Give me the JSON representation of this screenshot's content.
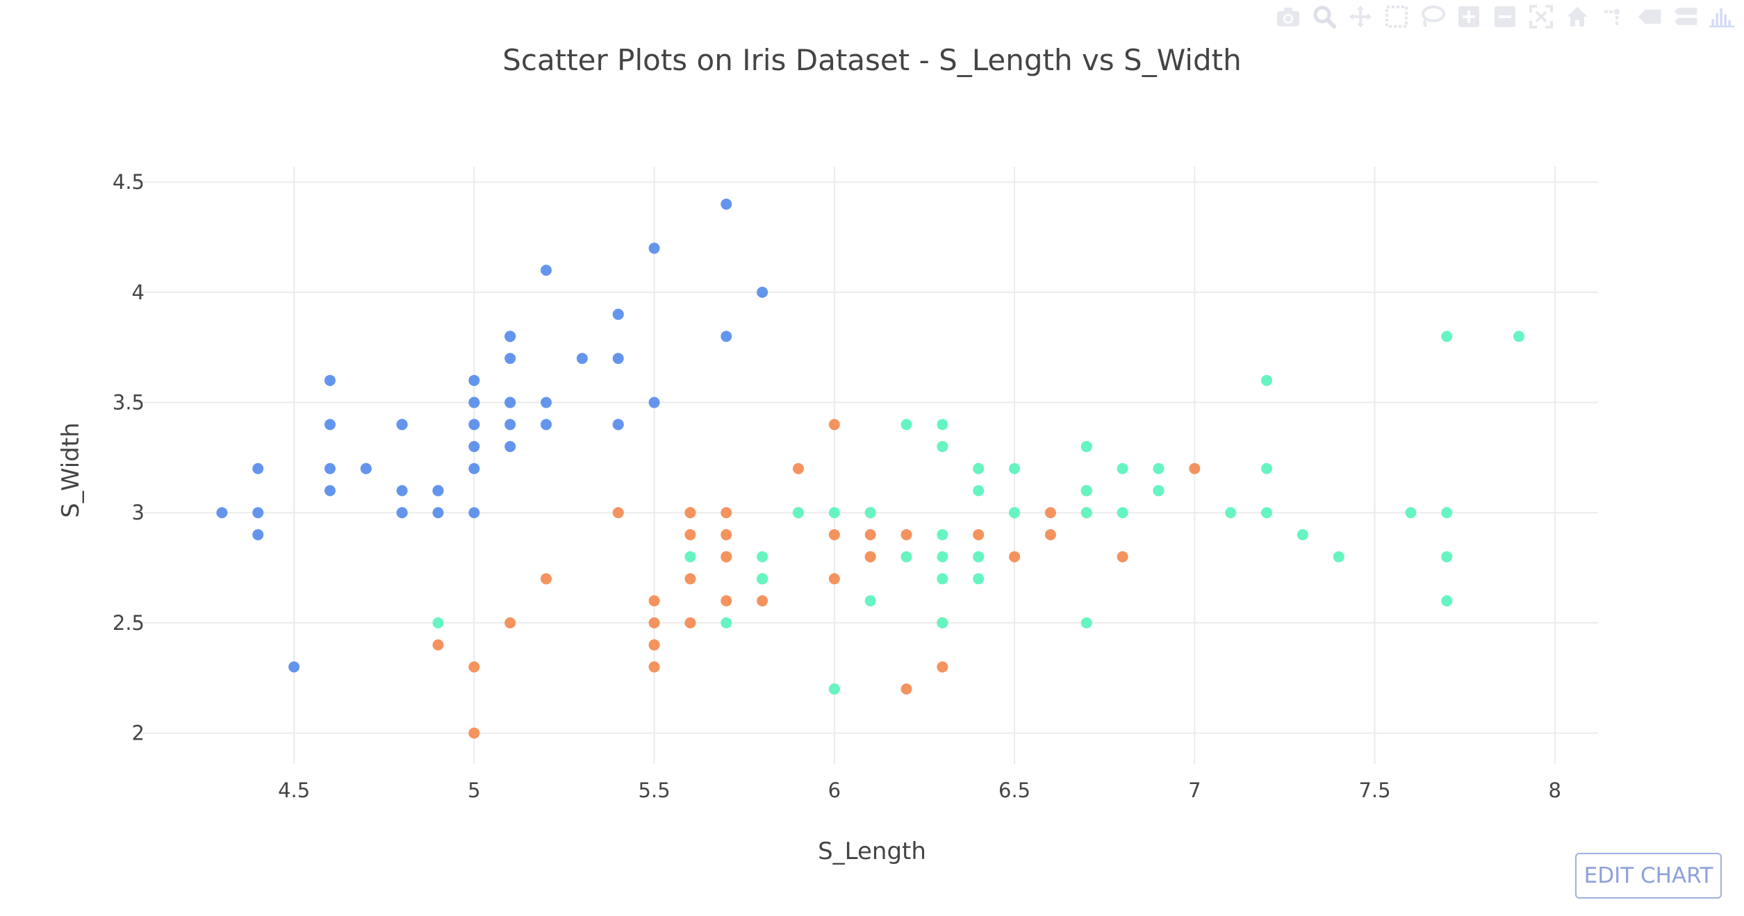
{
  "toolbar": {
    "edit_chart_label": "EDIT CHART",
    "icons": [
      "camera-icon",
      "zoom-icon",
      "pan-icon",
      "box-select-icon",
      "lasso-icon",
      "zoom-in-icon",
      "zoom-out-icon",
      "autoscale-icon",
      "home-icon",
      "spike-lines-icon",
      "hover-closest-icon",
      "hover-compare-icon",
      "plotly-logo-icon"
    ]
  },
  "chart_data": {
    "type": "scatter",
    "title": "Scatter Plots on Iris Dataset - S_Length vs S_Width",
    "xlabel": "S_Length",
    "ylabel": "S_Width",
    "xlim": [
      4.06,
      8.12
    ],
    "ylim": [
      1.86,
      4.57
    ],
    "xticks": [
      "4.5",
      "5",
      "5.5",
      "6",
      "6.5",
      "7",
      "7.5",
      "8"
    ],
    "yticks": [
      "2",
      "2.5",
      "3",
      "3.5",
      "4",
      "4.5"
    ],
    "grid": true,
    "colors": [
      "#6495ed",
      "#f4935e",
      "#66f5c0"
    ],
    "series": [
      {
        "color": "#6495ed",
        "points": [
          [
            5.1,
            3.5
          ],
          [
            4.9,
            3.0
          ],
          [
            4.7,
            3.2
          ],
          [
            4.6,
            3.1
          ],
          [
            5.0,
            3.6
          ],
          [
            5.4,
            3.9
          ],
          [
            4.6,
            3.4
          ],
          [
            5.0,
            3.4
          ],
          [
            4.4,
            2.9
          ],
          [
            4.9,
            3.1
          ],
          [
            5.4,
            3.7
          ],
          [
            4.8,
            3.4
          ],
          [
            4.8,
            3.0
          ],
          [
            4.3,
            3.0
          ],
          [
            5.8,
            4.0
          ],
          [
            5.7,
            4.4
          ],
          [
            5.4,
            3.9
          ],
          [
            5.1,
            3.5
          ],
          [
            5.7,
            3.8
          ],
          [
            5.1,
            3.8
          ],
          [
            5.4,
            3.4
          ],
          [
            5.1,
            3.7
          ],
          [
            4.6,
            3.6
          ],
          [
            5.1,
            3.3
          ],
          [
            4.8,
            3.4
          ],
          [
            5.0,
            3.0
          ],
          [
            5.0,
            3.4
          ],
          [
            5.2,
            3.5
          ],
          [
            5.2,
            3.4
          ],
          [
            4.7,
            3.2
          ],
          [
            4.8,
            3.1
          ],
          [
            5.4,
            3.4
          ],
          [
            5.2,
            4.1
          ],
          [
            5.5,
            4.2
          ],
          [
            4.9,
            3.1
          ],
          [
            5.0,
            3.2
          ],
          [
            5.5,
            3.5
          ],
          [
            4.9,
            3.1
          ],
          [
            4.4,
            3.0
          ],
          [
            5.1,
            3.4
          ],
          [
            5.0,
            3.5
          ],
          [
            4.5,
            2.3
          ],
          [
            4.4,
            3.2
          ],
          [
            5.0,
            3.5
          ],
          [
            5.1,
            3.8
          ],
          [
            4.8,
            3.0
          ],
          [
            5.1,
            3.8
          ],
          [
            4.6,
            3.2
          ],
          [
            5.3,
            3.7
          ],
          [
            5.0,
            3.3
          ]
        ]
      },
      {
        "color": "#f4935e",
        "points": [
          [
            7.0,
            3.2
          ],
          [
            6.4,
            3.2
          ],
          [
            6.9,
            3.1
          ],
          [
            5.5,
            2.3
          ],
          [
            6.5,
            2.8
          ],
          [
            5.7,
            2.8
          ],
          [
            6.3,
            3.3
          ],
          [
            4.9,
            2.4
          ],
          [
            6.6,
            2.9
          ],
          [
            5.2,
            2.7
          ],
          [
            5.0,
            2.0
          ],
          [
            5.9,
            3.0
          ],
          [
            6.0,
            2.2
          ],
          [
            6.1,
            2.9
          ],
          [
            5.6,
            2.9
          ],
          [
            6.7,
            3.1
          ],
          [
            5.6,
            3.0
          ],
          [
            5.8,
            2.7
          ],
          [
            6.2,
            2.2
          ],
          [
            5.6,
            2.5
          ],
          [
            5.9,
            3.2
          ],
          [
            6.1,
            2.8
          ],
          [
            6.3,
            2.5
          ],
          [
            6.1,
            2.8
          ],
          [
            6.4,
            2.9
          ],
          [
            6.6,
            3.0
          ],
          [
            6.8,
            2.8
          ],
          [
            6.7,
            3.0
          ],
          [
            6.0,
            2.9
          ],
          [
            5.7,
            2.6
          ],
          [
            5.5,
            2.4
          ],
          [
            5.5,
            2.4
          ],
          [
            5.8,
            2.7
          ],
          [
            6.0,
            2.7
          ],
          [
            5.4,
            3.0
          ],
          [
            6.0,
            3.4
          ],
          [
            6.7,
            3.1
          ],
          [
            6.3,
            2.3
          ],
          [
            5.6,
            3.0
          ],
          [
            5.5,
            2.5
          ],
          [
            5.5,
            2.6
          ],
          [
            6.1,
            3.0
          ],
          [
            5.8,
            2.6
          ],
          [
            5.0,
            2.3
          ],
          [
            5.6,
            2.7
          ],
          [
            5.7,
            3.0
          ],
          [
            5.7,
            2.9
          ],
          [
            6.2,
            2.9
          ],
          [
            5.1,
            2.5
          ],
          [
            5.7,
            2.8
          ]
        ]
      },
      {
        "color": "#66f5c0",
        "points": [
          [
            6.3,
            3.3
          ],
          [
            5.8,
            2.7
          ],
          [
            7.1,
            3.0
          ],
          [
            6.3,
            2.9
          ],
          [
            6.5,
            3.0
          ],
          [
            7.6,
            3.0
          ],
          [
            4.9,
            2.5
          ],
          [
            7.3,
            2.9
          ],
          [
            6.7,
            2.5
          ],
          [
            7.2,
            3.6
          ],
          [
            6.5,
            3.2
          ],
          [
            6.4,
            2.7
          ],
          [
            6.8,
            3.0
          ],
          [
            5.7,
            2.5
          ],
          [
            5.8,
            2.8
          ],
          [
            6.4,
            3.2
          ],
          [
            6.5,
            3.0
          ],
          [
            7.7,
            3.8
          ],
          [
            7.7,
            2.6
          ],
          [
            6.0,
            2.2
          ],
          [
            6.9,
            3.2
          ],
          [
            5.6,
            2.8
          ],
          [
            7.7,
            2.8
          ],
          [
            6.3,
            2.7
          ],
          [
            6.7,
            3.3
          ],
          [
            7.2,
            3.2
          ],
          [
            6.2,
            2.8
          ],
          [
            6.1,
            3.0
          ],
          [
            6.4,
            2.8
          ],
          [
            7.2,
            3.0
          ],
          [
            7.4,
            2.8
          ],
          [
            7.9,
            3.8
          ],
          [
            6.4,
            2.8
          ],
          [
            6.3,
            2.8
          ],
          [
            6.1,
            2.6
          ],
          [
            7.7,
            3.0
          ],
          [
            6.3,
            3.4
          ],
          [
            6.4,
            3.1
          ],
          [
            6.0,
            3.0
          ],
          [
            6.9,
            3.1
          ],
          [
            6.7,
            3.1
          ],
          [
            6.9,
            3.1
          ],
          [
            5.8,
            2.7
          ],
          [
            6.8,
            3.2
          ],
          [
            6.7,
            3.3
          ],
          [
            6.7,
            3.0
          ],
          [
            6.3,
            2.5
          ],
          [
            6.5,
            3.0
          ],
          [
            6.2,
            3.4
          ],
          [
            5.9,
            3.0
          ]
        ]
      }
    ]
  }
}
